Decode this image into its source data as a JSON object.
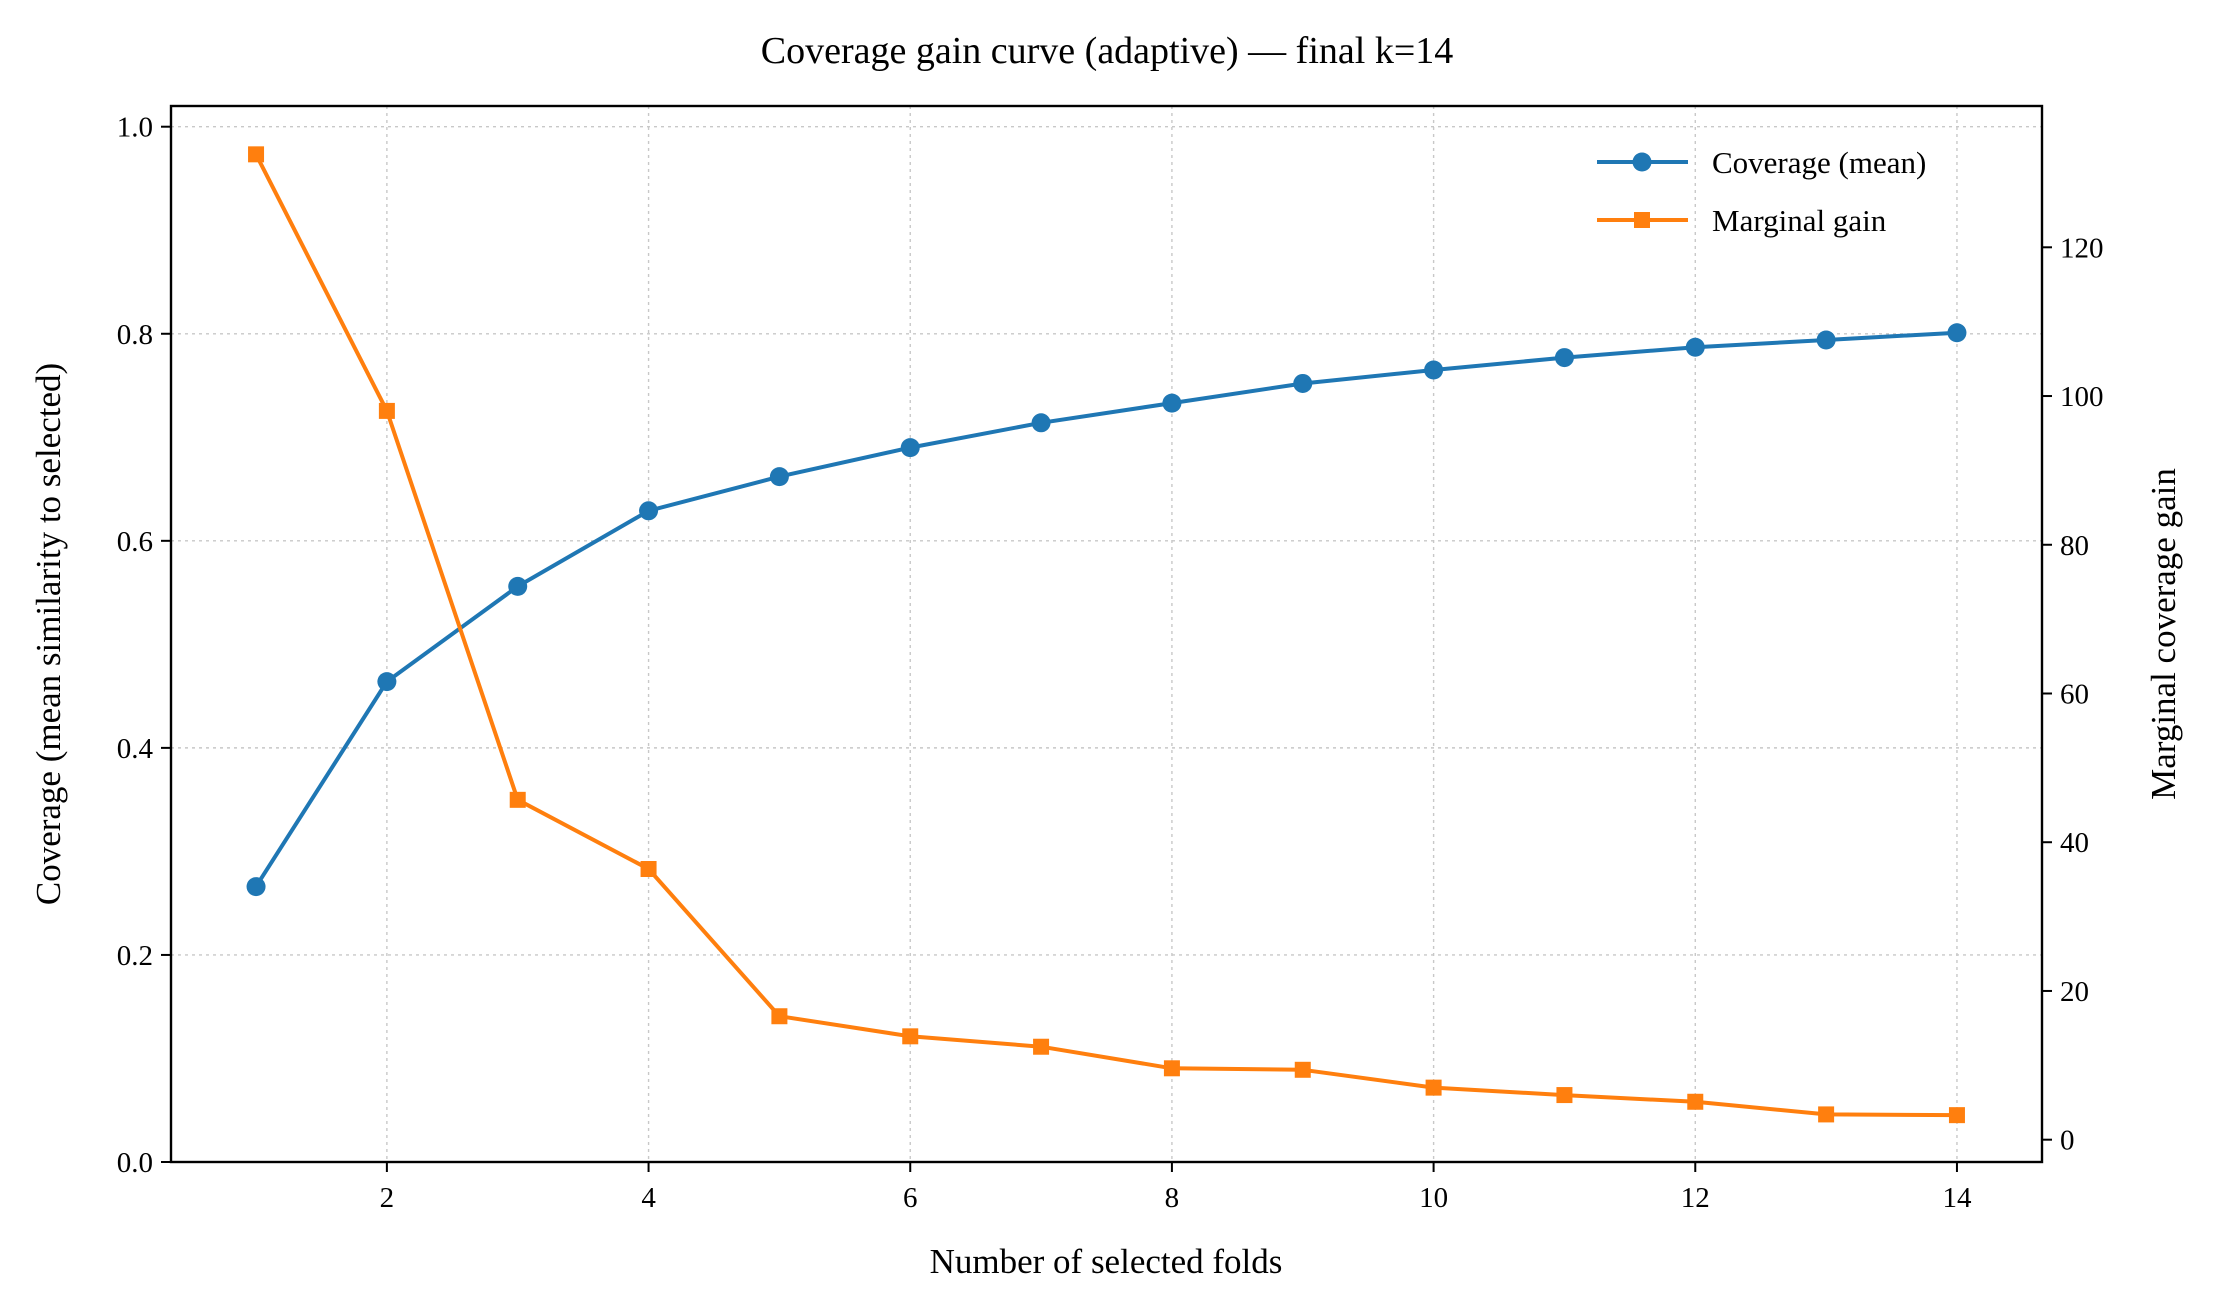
{
  "chart_data": {
    "type": "line",
    "title": "Coverage gain curve (adaptive) — final k=14",
    "xlabel": "Number of selected folds",
    "ylabel": "Coverage (mean similarity to selected)",
    "y2label": "Marginal coverage gain",
    "x": [
      1,
      2,
      3,
      4,
      5,
      6,
      7,
      8,
      9,
      10,
      11,
      12,
      13,
      14
    ],
    "xlim": [
      0.35,
      14.65
    ],
    "ylim": [
      0.0,
      1.02
    ],
    "y2lim": [
      -3,
      139
    ],
    "xticks": [
      2,
      4,
      6,
      8,
      10,
      12,
      14
    ],
    "yticks": [
      0.0,
      0.2,
      0.4,
      0.6,
      0.8,
      1.0
    ],
    "y2ticks": [
      0,
      20,
      40,
      60,
      80,
      100,
      120
    ],
    "grid": true,
    "legend_position": "top-right",
    "series": [
      {
        "name": "Coverage (mean)",
        "axis": "left",
        "marker": "circle",
        "color": "#1f77b4",
        "values": [
          0.266,
          0.464,
          0.556,
          0.629,
          0.662,
          0.69,
          0.714,
          0.733,
          0.752,
          0.765,
          0.777,
          0.787,
          0.794,
          0.801
        ]
      },
      {
        "name": "Marginal gain",
        "axis": "right",
        "marker": "square",
        "color": "#ff7f0e",
        "values": [
          132.5,
          98.0,
          45.7,
          36.4,
          16.6,
          13.9,
          12.5,
          9.6,
          9.4,
          7.0,
          6.0,
          5.1,
          3.4,
          3.3
        ]
      }
    ]
  }
}
